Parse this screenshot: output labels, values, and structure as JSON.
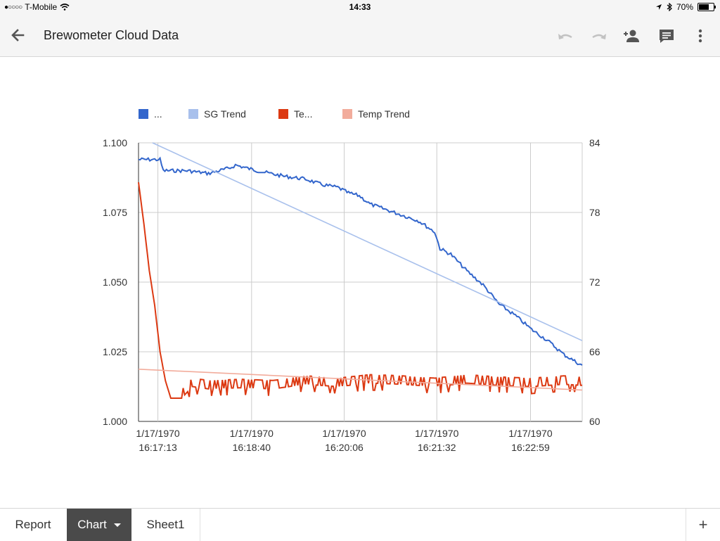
{
  "status": {
    "carrier": "T-Mobile",
    "time": "14:33",
    "battery_text": "70%",
    "battery_level": 0.7
  },
  "toolbar": {
    "title": "Brewometer Cloud Data",
    "icons": [
      "back-arrow-icon",
      "undo-icon",
      "redo-icon",
      "add-person-icon",
      "comment-icon",
      "more-vert-icon"
    ]
  },
  "chart_data": {
    "type": "line",
    "legend": [
      {
        "label": "...",
        "color": "#3366cc"
      },
      {
        "label": "SG Trend",
        "color": "#a8c0ec"
      },
      {
        "label": "Te...",
        "color": "#dc3912"
      },
      {
        "label": "Temp Trend",
        "color": "#f2ac9c"
      }
    ],
    "legend_position": "top-left",
    "grid": true,
    "x_range": [
      "1/17/1970 16:16:55",
      "1/17/1970 16:23:47"
    ],
    "x_ticks": [
      {
        "date": "1/17/1970",
        "time": "16:17:13"
      },
      {
        "date": "1/17/1970",
        "time": "16:18:40"
      },
      {
        "date": "1/17/1970",
        "time": "16:20:06"
      },
      {
        "date": "1/17/1970",
        "time": "16:21:32"
      },
      {
        "date": "1/17/1970",
        "time": "16:22:59"
      }
    ],
    "y_left": {
      "min": 1.0,
      "max": 1.1,
      "ticks": [
        "1.100",
        "1.075",
        "1.050",
        "1.025",
        "1.000"
      ]
    },
    "y_right": {
      "min": 60,
      "max": 84,
      "ticks": [
        "84",
        "78",
        "72",
        "66",
        "60"
      ]
    },
    "series": [
      {
        "axis": "left",
        "color": "#3366cc",
        "points": [
          [
            "16:16:55",
            1.094
          ],
          [
            "16:17:10",
            1.094
          ],
          [
            "16:17:15",
            1.094
          ],
          [
            "16:17:18",
            1.09
          ],
          [
            "16:17:40",
            1.09
          ],
          [
            "16:18:00",
            1.089
          ],
          [
            "16:18:20",
            1.091
          ],
          [
            "16:18:25",
            1.092
          ],
          [
            "16:18:45",
            1.09
          ],
          [
            "16:19:10",
            1.088
          ],
          [
            "16:19:30",
            1.087
          ],
          [
            "16:19:45",
            1.085
          ],
          [
            "16:20:00",
            1.084
          ],
          [
            "16:20:10",
            1.082
          ],
          [
            "16:20:20",
            1.081
          ],
          [
            "16:20:30",
            1.078
          ],
          [
            "16:20:45",
            1.076
          ],
          [
            "16:21:00",
            1.074
          ],
          [
            "16:21:15",
            1.072
          ],
          [
            "16:21:30",
            1.068
          ],
          [
            "16:21:35",
            1.062
          ],
          [
            "16:21:45",
            1.06
          ],
          [
            "16:22:00",
            1.054
          ],
          [
            "16:22:15",
            1.049
          ],
          [
            "16:22:30",
            1.042
          ],
          [
            "16:22:45",
            1.038
          ],
          [
            "16:23:00",
            1.033
          ],
          [
            "16:23:15",
            1.029
          ],
          [
            "16:23:30",
            1.024
          ],
          [
            "16:23:47",
            1.02
          ]
        ]
      },
      {
        "axis": "left",
        "color": "#a8c0ec",
        "points": [
          [
            "16:17:08",
            1.1
          ],
          [
            "16:23:47",
            1.029
          ]
        ]
      },
      {
        "axis": "right",
        "color": "#dc3912",
        "points": [
          [
            "16:16:55",
            80.6
          ],
          [
            "16:17:00",
            77.0
          ],
          [
            "16:17:05",
            73.0
          ],
          [
            "16:17:10",
            70.0
          ],
          [
            "16:17:15",
            66.0
          ],
          [
            "16:17:20",
            63.5
          ],
          [
            "16:17:25",
            62.0
          ],
          [
            "16:17:35",
            62.0
          ],
          [
            "16:17:45",
            63.0
          ],
          [
            "16:18:00",
            62.8
          ],
          [
            "16:18:30",
            62.9
          ],
          [
            "16:19:00",
            62.8
          ],
          [
            "16:19:30",
            63.2
          ],
          [
            "16:20:00",
            63.0
          ],
          [
            "16:20:30",
            63.3
          ],
          [
            "16:21:00",
            63.2
          ],
          [
            "16:21:30",
            63.0
          ],
          [
            "16:22:00",
            63.3
          ],
          [
            "16:22:30",
            63.1
          ],
          [
            "16:23:00",
            63.0
          ],
          [
            "16:23:30",
            63.2
          ],
          [
            "16:23:47",
            63.1
          ]
        ]
      },
      {
        "axis": "right",
        "color": "#f2ac9c",
        "points": [
          [
            "16:16:55",
            64.5
          ],
          [
            "16:23:47",
            62.7
          ]
        ]
      }
    ]
  },
  "tabs": [
    {
      "label": "Report",
      "active": false
    },
    {
      "label": "Chart",
      "active": true
    },
    {
      "label": "Sheet1",
      "active": false
    }
  ],
  "add_sheet_label": "+"
}
